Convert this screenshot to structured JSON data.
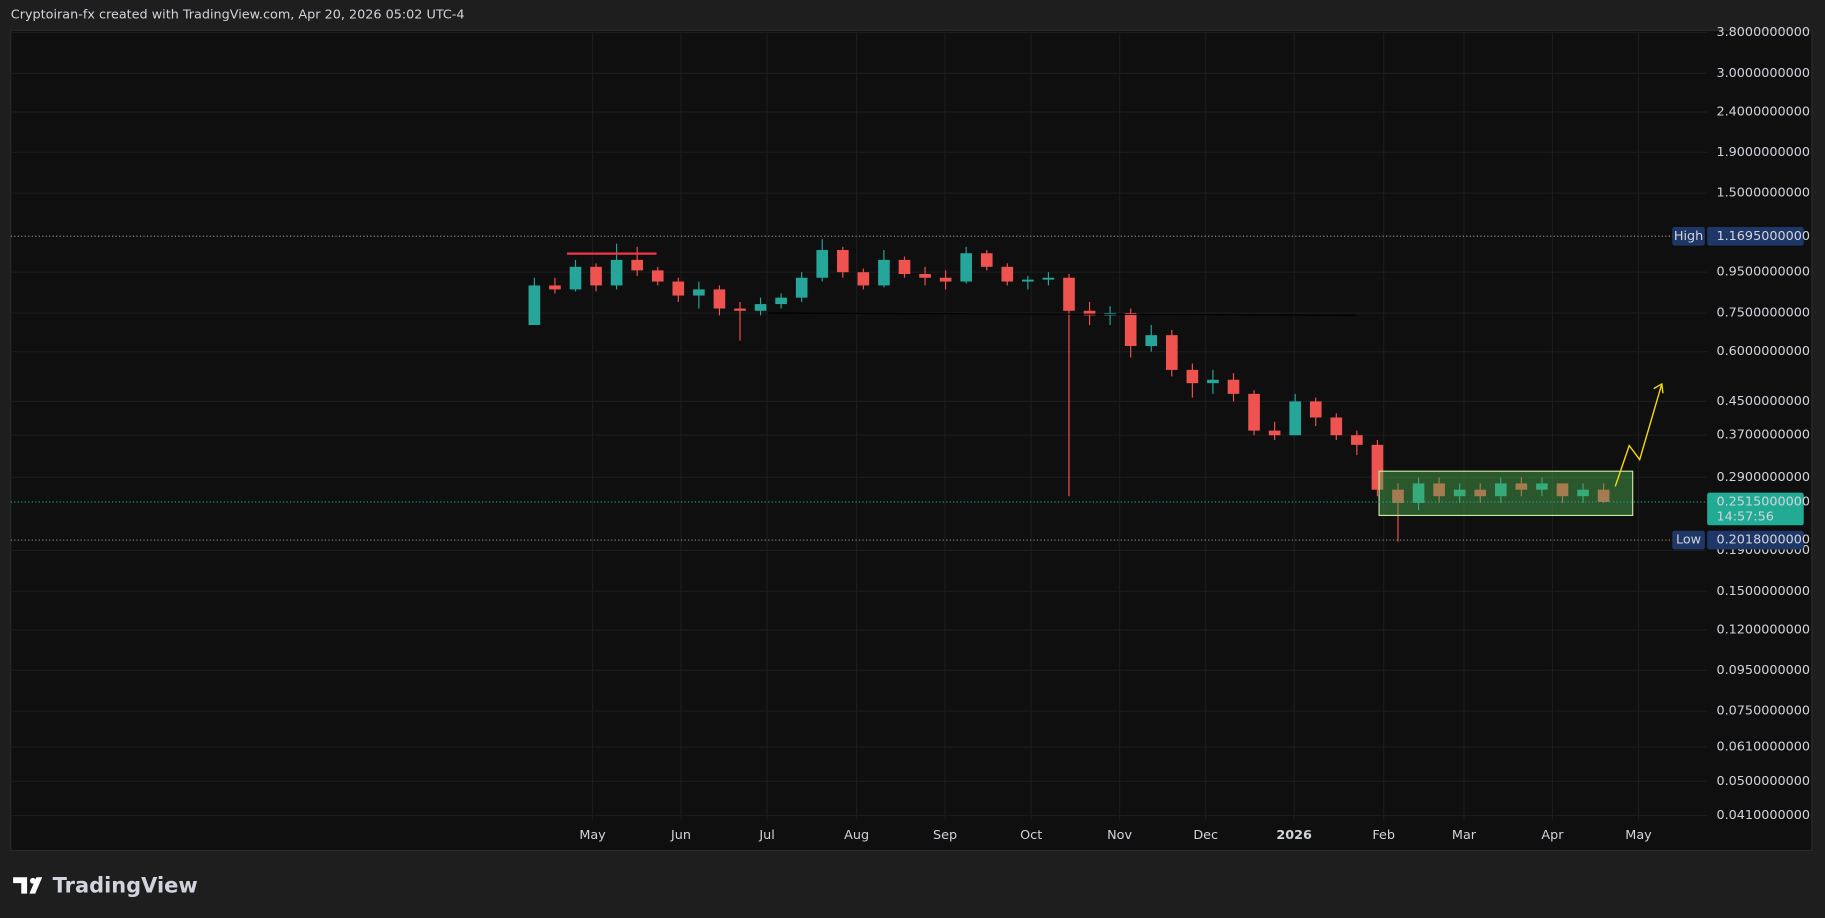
{
  "header": "Cryptoiran-fx created with TradingView.com, Apr 20, 2026 05:02 UTC-4",
  "brand": "TradingView",
  "chart_data": {
    "type": "candlestick",
    "log_scale": true,
    "grid": true,
    "up_color": "#26a69a",
    "down_color": "#ef5350",
    "x_labels": [
      "May",
      "Jun",
      "Jul",
      "Aug",
      "Sep",
      "Oct",
      "Nov",
      "Dec",
      "2026",
      "Feb",
      "Mar",
      "Apr",
      "May"
    ],
    "open": [
      0.7,
      0.88,
      0.86,
      0.98,
      0.88,
      1.02,
      0.96,
      0.9,
      0.83,
      0.86,
      0.77,
      0.76,
      0.79,
      0.82,
      0.92,
      1.08,
      0.95,
      0.88,
      1.02,
      0.94,
      0.92,
      0.9,
      1.06,
      0.98,
      0.9,
      0.91,
      0.92,
      0.76,
      0.74,
      0.75,
      0.62,
      0.66,
      0.54,
      0.5,
      0.51,
      0.47,
      0.38,
      0.37,
      0.45,
      0.41,
      0.37,
      0.35,
      0.27,
      0.25,
      0.28,
      0.26,
      0.27,
      0.26,
      0.28,
      0.27,
      0.28,
      0.26,
      0.27
    ],
    "high": [
      0.92,
      0.92,
      1.02,
      1.0,
      1.12,
      1.1,
      0.98,
      0.92,
      0.9,
      0.88,
      0.8,
      0.82,
      0.84,
      0.95,
      1.15,
      1.1,
      0.97,
      1.08,
      1.04,
      0.98,
      0.96,
      1.1,
      1.08,
      1.0,
      0.93,
      0.95,
      0.94,
      0.8,
      0.78,
      0.77,
      0.7,
      0.68,
      0.56,
      0.54,
      0.53,
      0.48,
      0.4,
      0.47,
      0.46,
      0.42,
      0.38,
      0.36,
      0.28,
      0.29,
      0.29,
      0.28,
      0.28,
      0.29,
      0.29,
      0.29,
      0.28,
      0.28,
      0.28
    ],
    "low": [
      0.7,
      0.84,
      0.85,
      0.85,
      0.86,
      0.93,
      0.88,
      0.8,
      0.77,
      0.74,
      0.64,
      0.74,
      0.77,
      0.8,
      0.9,
      0.92,
      0.86,
      0.87,
      0.92,
      0.88,
      0.86,
      0.89,
      0.96,
      0.88,
      0.86,
      0.88,
      0.26,
      0.7,
      0.7,
      0.58,
      0.6,
      0.52,
      0.46,
      0.47,
      0.45,
      0.37,
      0.36,
      0.37,
      0.39,
      0.36,
      0.33,
      0.26,
      0.2,
      0.24,
      0.25,
      0.25,
      0.25,
      0.25,
      0.26,
      0.26,
      0.25,
      0.25,
      0.25
    ],
    "close": [
      0.88,
      0.86,
      0.98,
      0.88,
      1.02,
      0.96,
      0.9,
      0.83,
      0.86,
      0.77,
      0.76,
      0.79,
      0.82,
      0.92,
      1.08,
      0.95,
      0.88,
      1.02,
      0.94,
      0.92,
      0.9,
      1.06,
      0.98,
      0.9,
      0.91,
      0.92,
      0.76,
      0.74,
      0.75,
      0.62,
      0.66,
      0.54,
      0.5,
      0.51,
      0.47,
      0.38,
      0.37,
      0.45,
      0.41,
      0.37,
      0.35,
      0.27,
      0.25,
      0.28,
      0.26,
      0.27,
      0.26,
      0.28,
      0.27,
      0.28,
      0.26,
      0.27,
      0.2515
    ],
    "ylim": [
      0.0335,
      3.85
    ],
    "yticks": [
      {
        "value": 3.8,
        "label": "3.8000000000"
      },
      {
        "value": 3.0,
        "label": "3.0000000000"
      },
      {
        "value": 2.4,
        "label": "2.4000000000"
      },
      {
        "value": 1.9,
        "label": "1.9000000000"
      },
      {
        "value": 1.5,
        "label": "1.5000000000"
      },
      {
        "value": 0.95,
        "label": "0.9500000000"
      },
      {
        "value": 0.75,
        "label": "0.7500000000"
      },
      {
        "value": 0.6,
        "label": "0.6000000000"
      },
      {
        "value": 0.45,
        "label": "0.4500000000"
      },
      {
        "value": 0.37,
        "label": "0.3700000000"
      },
      {
        "value": 0.29,
        "label": "0.2900000000"
      },
      {
        "value": 0.19,
        "label": "0.1900000000"
      },
      {
        "value": 0.15,
        "label": "0.1500000000"
      },
      {
        "value": 0.12,
        "label": "0.1200000000"
      },
      {
        "value": 0.095,
        "label": "0.0950000000"
      },
      {
        "value": 0.075,
        "label": "0.0750000000"
      },
      {
        "value": 0.061,
        "label": "0.0610000000"
      },
      {
        "value": 0.05,
        "label": "0.0500000000"
      },
      {
        "value": 0.041,
        "label": "0.0410000000"
      }
    ],
    "high_marker": {
      "label": "High",
      "value": 1.1695,
      "value_label": "1.1695000000"
    },
    "low_marker": {
      "label": "Low",
      "value": 0.2018,
      "value_label": "0.2018000000"
    },
    "last_price": {
      "value": 0.2515,
      "value_label": "0.2515000000",
      "countdown": "14:57:56"
    }
  }
}
